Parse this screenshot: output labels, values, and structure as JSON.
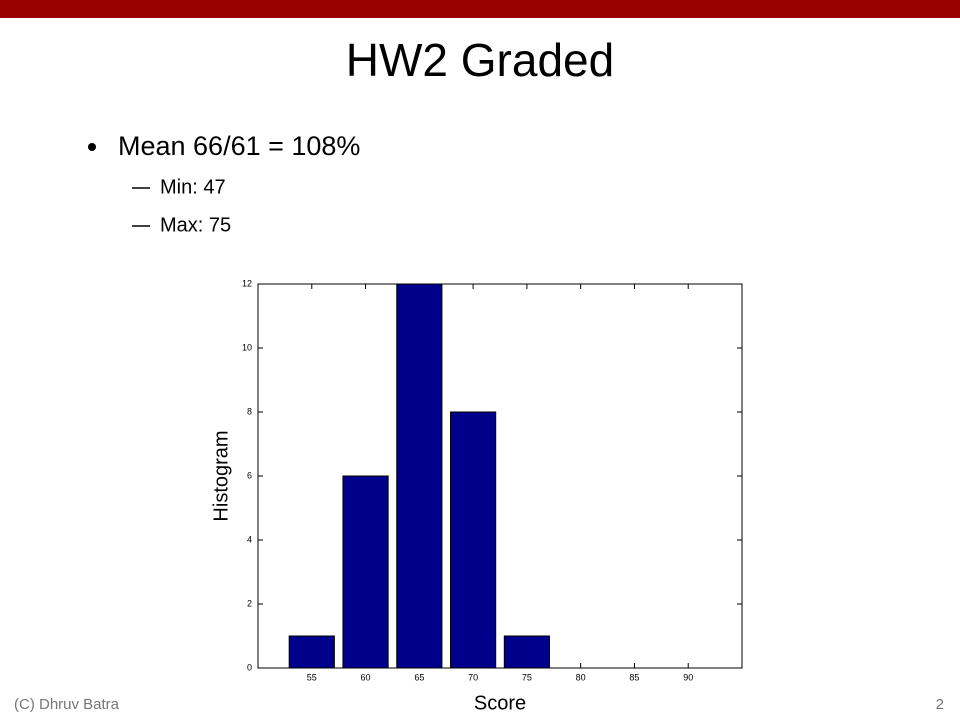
{
  "slide": {
    "title": "HW2 Graded",
    "bullets": [
      {
        "text": "Mean 66/61 = 108%",
        "subs": [
          "Min: 47",
          "Max: 75"
        ]
      }
    ],
    "footer": "(C) Dhruv Batra",
    "page_number": "2"
  },
  "chart_data": {
    "type": "bar",
    "xlabel": "Score",
    "ylabel": "Histogram",
    "x": [
      55,
      60,
      65,
      70,
      75
    ],
    "values": [
      1,
      6,
      12,
      8,
      1
    ],
    "color": "#00008b",
    "xlim": [
      50,
      95
    ],
    "xticks": [
      55,
      60,
      65,
      70,
      75,
      80,
      85,
      90
    ],
    "ylim": [
      0,
      12
    ],
    "yticks": [
      0,
      2,
      4,
      6,
      8,
      10,
      12
    ]
  }
}
